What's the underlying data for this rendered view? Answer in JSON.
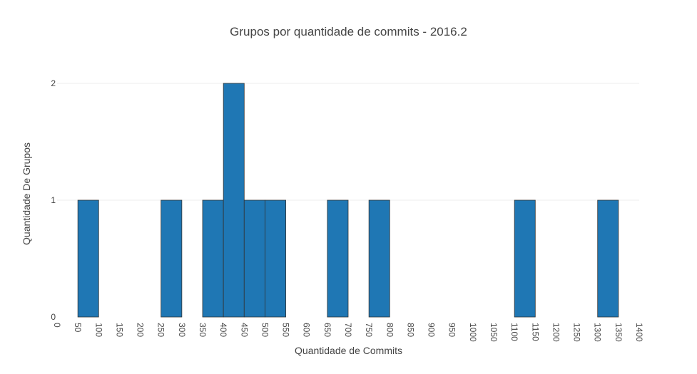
{
  "chart_data": {
    "type": "bar",
    "title": "Grupos por quantidade de commits - 2016.2",
    "xlabel": "Quantidade de Commits",
    "ylabel": "Quantidade De Grupos",
    "xlim": [
      0,
      1400
    ],
    "ylim": [
      0,
      2
    ],
    "bin_width": 50,
    "x_ticks": [
      "0",
      "50",
      "100",
      "150",
      "200",
      "250",
      "300",
      "350",
      "400",
      "450",
      "500",
      "550",
      "600",
      "650",
      "700",
      "750",
      "800",
      "850",
      "900",
      "950",
      "1000",
      "1050",
      "1100",
      "1150",
      "1200",
      "1250",
      "1300",
      "1350",
      "1400"
    ],
    "y_ticks": [
      "0",
      "1",
      "2"
    ],
    "bins": [
      {
        "start": 50,
        "end": 100,
        "count": 1
      },
      {
        "start": 250,
        "end": 300,
        "count": 1
      },
      {
        "start": 350,
        "end": 400,
        "count": 1
      },
      {
        "start": 400,
        "end": 450,
        "count": 2
      },
      {
        "start": 450,
        "end": 500,
        "count": 1
      },
      {
        "start": 500,
        "end": 550,
        "count": 1
      },
      {
        "start": 650,
        "end": 700,
        "count": 1
      },
      {
        "start": 750,
        "end": 800,
        "count": 1
      },
      {
        "start": 1100,
        "end": 1150,
        "count": 1
      },
      {
        "start": 1300,
        "end": 1350,
        "count": 1
      }
    ],
    "grid": true,
    "colors": {
      "bar": "#1f77b4",
      "outline": "#333333"
    }
  }
}
